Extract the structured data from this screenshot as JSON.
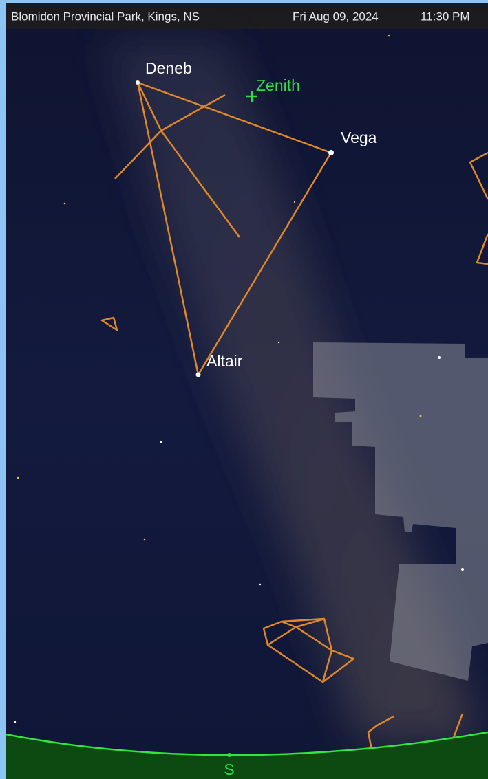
{
  "header": {
    "location": "Blomidon Provincial Park, Kings, NS",
    "date": "Fri Aug 09, 2024",
    "time": "11:30 PM"
  },
  "stars": [
    {
      "label": "Deneb"
    },
    {
      "label": "Vega"
    },
    {
      "label": "Altair"
    }
  ],
  "zenith": {
    "label": "Zenith"
  },
  "horizon": {
    "direction": "S"
  }
}
